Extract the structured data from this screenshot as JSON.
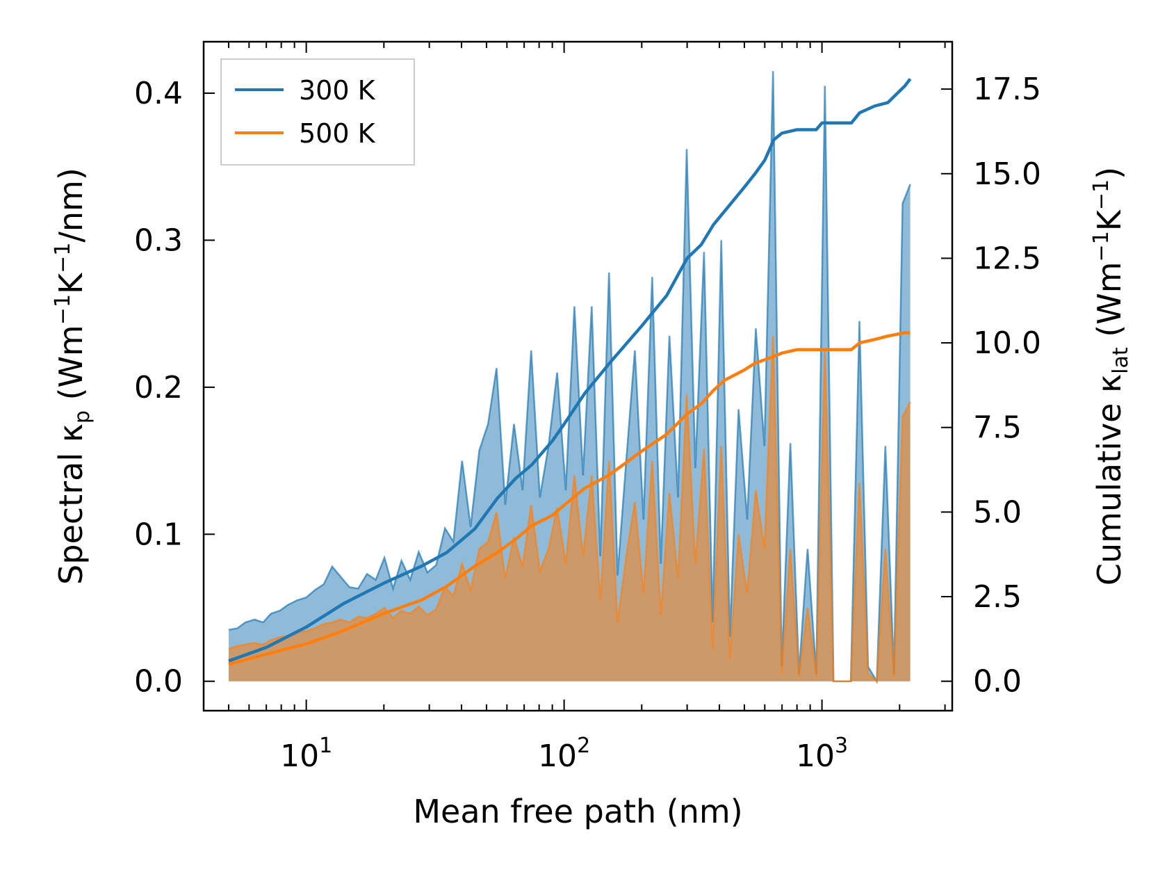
{
  "chart_data": {
    "type": "line",
    "title": "",
    "xlabel": "Mean free path (nm)",
    "x_scale": "log",
    "xlim": [
      4,
      3200
    ],
    "x_ticks": [
      {
        "value": 10,
        "base": "10",
        "exp": "1"
      },
      {
        "value": 100,
        "base": "10",
        "exp": "2"
      },
      {
        "value": 1000,
        "base": "10",
        "exp": "3"
      }
    ],
    "ylabel_left": {
      "pre": "Spectral κ",
      "sub": "p",
      "mid": " (Wm",
      "sup1": "−1",
      "k": "K",
      "sup2": "−1",
      "post": "/nm)"
    },
    "ylabel_right": {
      "pre": "Cumulative κ",
      "sub": "lat",
      "mid": " (Wm",
      "sup1": "−1",
      "k": "K",
      "sup2": "−1",
      "post": ")"
    },
    "ylim_left": [
      -0.02,
      0.435
    ],
    "ylim_right": [
      -0.87,
      18.9
    ],
    "y_ticks_left": [
      "0.0",
      "0.1",
      "0.2",
      "0.3",
      "0.4"
    ],
    "y_ticks_right": [
      "0.0",
      "2.5",
      "5.0",
      "7.5",
      "10.0",
      "12.5",
      "15.0",
      "17.5"
    ],
    "legend": {
      "position": "top-left",
      "entries": [
        "300 K",
        "500 K"
      ]
    },
    "colors": {
      "s300": "#1f77b4",
      "s500": "#ff7f0e",
      "fill300": "#1f77b4",
      "fill500": "#ff7f0e"
    },
    "series": [
      {
        "name": "300 K",
        "axis": "right",
        "kind": "cumulative",
        "x": [
          5,
          7,
          10,
          14,
          20,
          28,
          35,
          45,
          55,
          65,
          75,
          90,
          100,
          120,
          150,
          200,
          250,
          300,
          340,
          380,
          420,
          500,
          550,
          600,
          650,
          700,
          800,
          950,
          1000,
          1300,
          1400,
          1600,
          1800,
          2100,
          2200
        ],
        "y": [
          0.6,
          1.0,
          1.6,
          2.3,
          2.9,
          3.4,
          3.8,
          4.5,
          5.4,
          6.0,
          6.4,
          7.1,
          7.6,
          8.5,
          9.4,
          10.5,
          11.4,
          12.5,
          12.9,
          13.5,
          13.9,
          14.6,
          15.0,
          15.4,
          16.0,
          16.2,
          16.3,
          16.3,
          16.5,
          16.5,
          16.8,
          17.0,
          17.1,
          17.6,
          17.8
        ]
      },
      {
        "name": "500 K",
        "axis": "right",
        "kind": "cumulative",
        "x": [
          5,
          7,
          10,
          14,
          20,
          28,
          35,
          45,
          55,
          65,
          75,
          90,
          100,
          120,
          150,
          200,
          250,
          300,
          340,
          380,
          420,
          500,
          550,
          600,
          650,
          700,
          800,
          950,
          1000,
          1300,
          1400,
          1600,
          1800,
          2100,
          2200
        ],
        "y": [
          0.5,
          0.8,
          1.1,
          1.5,
          2.0,
          2.4,
          2.8,
          3.4,
          3.8,
          4.2,
          4.6,
          4.9,
          5.2,
          5.7,
          6.1,
          6.8,
          7.3,
          7.9,
          8.2,
          8.6,
          8.9,
          9.2,
          9.4,
          9.5,
          9.6,
          9.7,
          9.8,
          9.8,
          9.8,
          9.8,
          10.0,
          10.1,
          10.2,
          10.3,
          10.3
        ]
      },
      {
        "name": "300 K",
        "axis": "left",
        "kind": "spectral",
        "x": [
          5,
          5.4,
          5.8,
          6.3,
          6.8,
          7.3,
          7.9,
          8.5,
          9.2,
          10,
          10.8,
          11.7,
          12.6,
          13.6,
          14.7,
          15.9,
          17.2,
          18.6,
          20.1,
          21.7,
          23.4,
          25.3,
          27.3,
          29.5,
          31.9,
          34.5,
          37.2,
          40.2,
          43.4,
          46.9,
          50.7,
          54.7,
          59.1,
          63.9,
          69,
          74.5,
          80.5,
          87,
          94,
          101.5,
          109.6,
          118.4,
          127.9,
          138.2,
          149.3,
          161.2,
          174.2,
          188.1,
          203.2,
          219.5,
          237.1,
          256.1,
          276.6,
          298.8,
          322.8,
          348.7,
          376.6,
          406.8,
          439.4,
          474.7,
          512.7,
          553.8,
          598.2,
          646.2,
          698,
          754,
          814.4,
          879.7,
          950.3,
          1026.5,
          1108.8,
          1197.7,
          1293.7,
          1397.5,
          1509.5,
          1630.5,
          1761.2,
          1902.4,
          2054.9,
          2200
        ],
        "y": [
          0.035,
          0.036,
          0.04,
          0.042,
          0.04,
          0.046,
          0.048,
          0.052,
          0.055,
          0.057,
          0.062,
          0.066,
          0.078,
          0.071,
          0.064,
          0.063,
          0.073,
          0.069,
          0.084,
          0.063,
          0.082,
          0.069,
          0.088,
          0.074,
          0.079,
          0.104,
          0.095,
          0.15,
          0.105,
          0.157,
          0.175,
          0.213,
          0.12,
          0.175,
          0.13,
          0.225,
          0.125,
          0.16,
          0.21,
          0.13,
          0.255,
          0.14,
          0.255,
          0.085,
          0.278,
          0.072,
          0.15,
          0.225,
          0.11,
          0.275,
          0.08,
          0.235,
          0.125,
          0.362,
          0.145,
          0.292,
          0.04,
          0.3,
          0.03,
          0.185,
          0.11,
          0.24,
          0.16,
          0.415,
          0.01,
          0.162,
          0.005,
          0.09,
          0.005,
          0.405,
          0.0,
          0.0,
          0.0,
          0.245,
          0.01,
          0.0,
          0.16,
          0.005,
          0.325,
          0.338
        ]
      },
      {
        "name": "500 K",
        "axis": "left",
        "kind": "spectral",
        "x": [
          5,
          5.4,
          5.8,
          6.3,
          6.8,
          7.3,
          7.9,
          8.5,
          9.2,
          10,
          10.8,
          11.7,
          12.6,
          13.6,
          14.7,
          15.9,
          17.2,
          18.6,
          20.1,
          21.7,
          23.4,
          25.3,
          27.3,
          29.5,
          31.9,
          34.5,
          37.2,
          40.2,
          43.4,
          46.9,
          50.7,
          54.7,
          59.1,
          63.9,
          69,
          74.5,
          80.5,
          87,
          94,
          101.5,
          109.6,
          118.4,
          127.9,
          138.2,
          149.3,
          161.2,
          174.2,
          188.1,
          203.2,
          219.5,
          237.1,
          256.1,
          276.6,
          298.8,
          322.8,
          348.7,
          376.6,
          406.8,
          439.4,
          474.7,
          512.7,
          553.8,
          598.2,
          646.2,
          698,
          754,
          814.4,
          879.7,
          950.3,
          1026.5,
          1108.8,
          1197.7,
          1293.7,
          1397.5,
          1509.5,
          1630.5,
          1761.2,
          1902.4,
          2054.9,
          2200
        ],
        "y": [
          0.022,
          0.024,
          0.025,
          0.026,
          0.025,
          0.028,
          0.03,
          0.031,
          0.034,
          0.034,
          0.036,
          0.039,
          0.04,
          0.042,
          0.04,
          0.044,
          0.043,
          0.046,
          0.05,
          0.043,
          0.048,
          0.046,
          0.051,
          0.045,
          0.049,
          0.064,
          0.058,
          0.08,
          0.062,
          0.09,
          0.095,
          0.115,
          0.07,
          0.098,
          0.078,
          0.12,
          0.075,
          0.09,
          0.118,
          0.08,
          0.14,
          0.085,
          0.14,
          0.055,
          0.15,
          0.04,
          0.085,
          0.122,
          0.06,
          0.15,
          0.045,
          0.128,
          0.07,
          0.195,
          0.08,
          0.158,
          0.022,
          0.16,
          0.015,
          0.1,
          0.06,
          0.13,
          0.09,
          0.235,
          0.005,
          0.09,
          0.003,
          0.05,
          0.003,
          0.225,
          0.0,
          0.0,
          0.0,
          0.135,
          0.005,
          0.0,
          0.09,
          0.003,
          0.18,
          0.19
        ]
      }
    ]
  }
}
